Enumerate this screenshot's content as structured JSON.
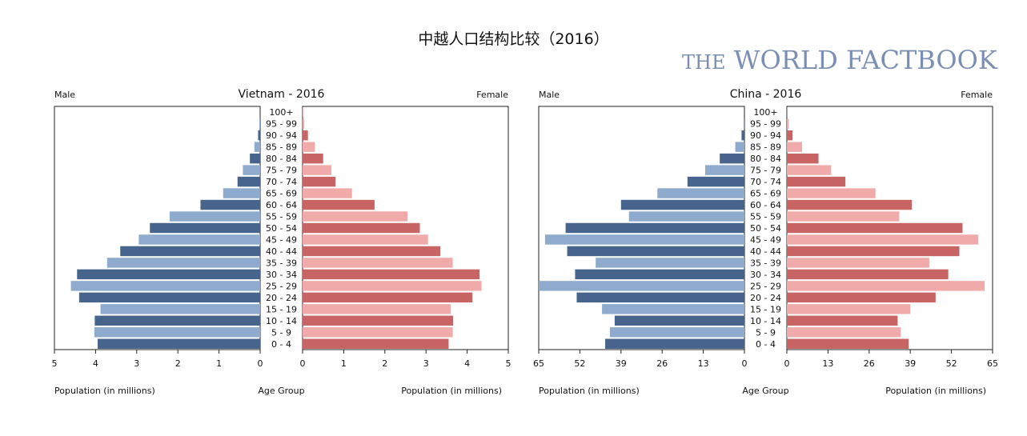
{
  "page_title": "中越人口结构比较（2016）",
  "brand": {
    "prefix": "THE",
    "text": "WORLD FACTBOOK"
  },
  "colors": {
    "male_dark": "#46648c",
    "male_light": "#8eabce",
    "female_dark": "#c86464",
    "female_light": "#f0aaaa"
  },
  "chart_data": [
    {
      "type": "bar",
      "title": "Vietnam - 2016",
      "left_label": "Male",
      "right_label": "Female",
      "xlabel_left": "Population (in millions)",
      "xlabel_center": "Age Group",
      "xlabel_right": "Population (in millions)",
      "xlim": [
        0,
        5
      ],
      "ticks": [
        "5",
        "4",
        "3",
        "2",
        "1",
        "0"
      ],
      "ticks_right": [
        "0",
        "1",
        "2",
        "3",
        "4",
        "5"
      ],
      "categories": [
        "100+",
        "95 - 99",
        "90 - 94",
        "85 - 89",
        "80 - 84",
        "75 - 79",
        "70 - 74",
        "65 - 69",
        "60 - 64",
        "55 - 59",
        "50 - 54",
        "45 - 49",
        "40 - 44",
        "35 - 39",
        "30 - 34",
        "25 - 29",
        "20 - 24",
        "15 - 19",
        "10 - 14",
        "5 - 9",
        "0 - 4"
      ],
      "series": [
        {
          "name": "Male",
          "values": [
            0.0,
            0.02,
            0.05,
            0.14,
            0.25,
            0.42,
            0.55,
            0.9,
            1.45,
            2.2,
            2.68,
            2.95,
            3.4,
            3.72,
            4.45,
            4.6,
            4.4,
            3.88,
            4.02,
            4.03,
            3.95
          ]
        },
        {
          "name": "Female",
          "values": [
            0.01,
            0.04,
            0.13,
            0.3,
            0.5,
            0.7,
            0.8,
            1.2,
            1.75,
            2.55,
            2.85,
            3.05,
            3.35,
            3.65,
            4.3,
            4.35,
            4.13,
            3.6,
            3.66,
            3.65,
            3.55
          ]
        }
      ]
    },
    {
      "type": "bar",
      "title": "China - 2016",
      "left_label": "Male",
      "right_label": "Female",
      "xlabel_left": "Population (in millions)",
      "xlabel_center": "Age Group",
      "xlabel_right": "Population (in millions)",
      "xlim": [
        0,
        65
      ],
      "ticks": [
        "65",
        "52",
        "39",
        "26",
        "13",
        "0"
      ],
      "ticks_right": [
        "0",
        "13",
        "26",
        "39",
        "52",
        "65"
      ],
      "categories": [
        "100+",
        "95 - 99",
        "90 - 94",
        "85 - 89",
        "80 - 84",
        "75 - 79",
        "70 - 74",
        "65 - 69",
        "60 - 64",
        "55 - 59",
        "50 - 54",
        "45 - 49",
        "40 - 44",
        "35 - 39",
        "30 - 34",
        "25 - 29",
        "20 - 24",
        "15 - 19",
        "10 - 14",
        "5 - 9",
        "0 - 4"
      ],
      "series": [
        {
          "name": "Male",
          "values": [
            0.02,
            0.3,
            0.9,
            2.9,
            7.8,
            12.4,
            18.0,
            27.5,
            39.0,
            36.5,
            56.5,
            63.0,
            56.0,
            47.0,
            53.5,
            65.0,
            53.0,
            45.0,
            41.0,
            42.5,
            44.0
          ]
        },
        {
          "name": "Female",
          "values": [
            0.05,
            0.6,
            1.8,
            4.8,
            10.0,
            14.0,
            18.5,
            28.0,
            39.5,
            35.5,
            55.5,
            60.5,
            54.5,
            45.0,
            51.0,
            62.5,
            47.0,
            39.0,
            35.0,
            36.0,
            38.5
          ]
        }
      ]
    }
  ]
}
